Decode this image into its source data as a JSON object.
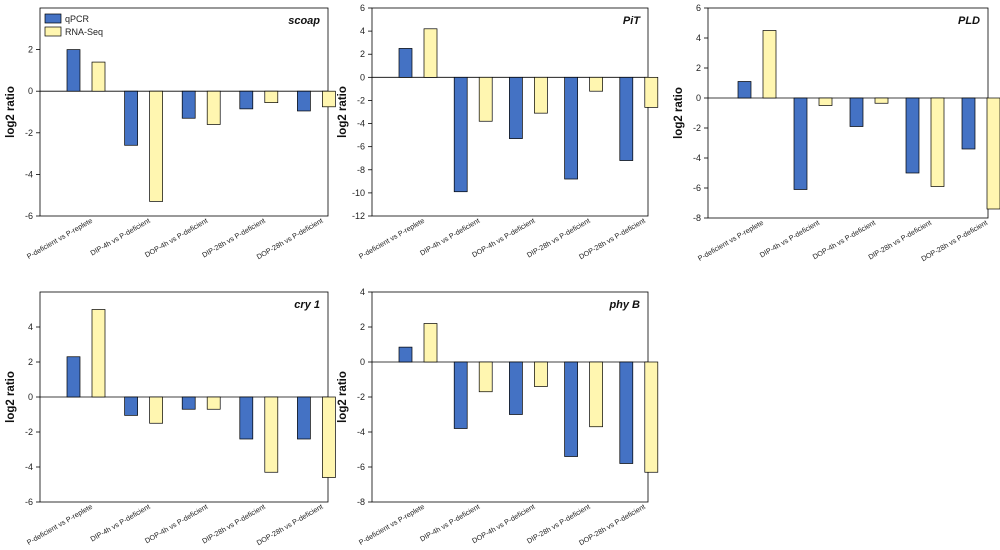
{
  "colors": {
    "qpcr": "#4472c4",
    "rnaseq": "#fff6b0"
  },
  "chart_data": [
    {
      "type": "bar",
      "title": "scoap",
      "ylabel": "log2 ratio",
      "ylim": [
        -6,
        4
      ],
      "yticks": [
        -6,
        -4,
        -2,
        0,
        2
      ],
      "categories": [
        "P-deficient vs P-replete",
        "DIP-4h vs P-deficient",
        "DOP-4h vs P-deficient",
        "DIP-28h vs P-deficient",
        "DOP-28h vs P-deficient"
      ],
      "series": [
        {
          "name": "qPCR",
          "values": [
            2.0,
            -2.6,
            -1.3,
            -0.85,
            -0.95
          ]
        },
        {
          "name": "RNA-Seq",
          "values": [
            1.4,
            -5.3,
            -1.6,
            -0.55,
            -0.75
          ]
        }
      ],
      "legend": {
        "placement": "top-left",
        "entries": [
          "qPCR",
          "RNA-Seq"
        ]
      }
    },
    {
      "type": "bar",
      "title": "PiT",
      "ylabel": "log2 ratio",
      "ylim": [
        -12,
        6
      ],
      "yticks": [
        -12,
        -10,
        -8,
        -6,
        -4,
        -2,
        0,
        2,
        4,
        6
      ],
      "categories": [
        "P-deficient vs P-replete",
        "DIP-4h vs P-deficient",
        "DOP-4h vs P-deficient",
        "DIP-28h vs P-deficient",
        "DOP-28h vs P-deficient"
      ],
      "series": [
        {
          "name": "qPCR",
          "values": [
            2.5,
            -9.9,
            -5.3,
            -8.8,
            -7.2
          ]
        },
        {
          "name": "RNA-Seq",
          "values": [
            4.2,
            -3.8,
            -3.1,
            -1.2,
            -2.6
          ]
        }
      ]
    },
    {
      "type": "bar",
      "title": "PLD",
      "ylabel": "log2 ratio",
      "ylim": [
        -8,
        6
      ],
      "yticks": [
        -8,
        -6,
        -4,
        -2,
        0,
        2,
        4,
        6
      ],
      "categories": [
        "P-deficient vs P-replete",
        "DIP-4h vs P-deficient",
        "DOP-4h vs P-deficient",
        "DIP-28h vs P-deficient",
        "DOP-28h vs P-deficient"
      ],
      "series": [
        {
          "name": "qPCR",
          "values": [
            1.1,
            -6.1,
            -1.9,
            -5.0,
            -3.4
          ]
        },
        {
          "name": "RNA-Seq",
          "values": [
            4.5,
            -0.5,
            -0.35,
            -5.9,
            -7.4
          ]
        }
      ]
    },
    {
      "type": "bar",
      "title": "cry 1",
      "ylabel": "log2 ratio",
      "ylim": [
        -6,
        6
      ],
      "yticks": [
        -6,
        -4,
        -2,
        0,
        2,
        4
      ],
      "categories": [
        "P-deficient vs P-replete",
        "DIP-4h vs P-deficient",
        "DOP-4h vs P-deficient",
        "DIP-28h vs P-deficient",
        "DOP-28h vs P-deficient"
      ],
      "series": [
        {
          "name": "qPCR",
          "values": [
            2.3,
            -1.05,
            -0.7,
            -2.4,
            -2.4
          ]
        },
        {
          "name": "RNA-Seq",
          "values": [
            5.0,
            -1.5,
            -0.7,
            -4.3,
            -4.6
          ]
        }
      ]
    },
    {
      "type": "bar",
      "title": "phy B",
      "ylabel": "log2 ratio",
      "ylim": [
        -8,
        4
      ],
      "yticks": [
        -8,
        -6,
        -4,
        -2,
        0,
        2,
        4
      ],
      "categories": [
        "P-deficient vs P-replete",
        "DIP-4h vs P-deficient",
        "DOP-4h vs P-deficient",
        "DIP-28h vs P-deficient",
        "DOP-28h vs P-deficient"
      ],
      "series": [
        {
          "name": "qPCR",
          "values": [
            0.85,
            -3.8,
            -3.0,
            -5.4,
            -5.8
          ]
        },
        {
          "name": "RNA-Seq",
          "values": [
            2.2,
            -1.7,
            -1.4,
            -3.7,
            -6.3
          ]
        }
      ]
    }
  ]
}
